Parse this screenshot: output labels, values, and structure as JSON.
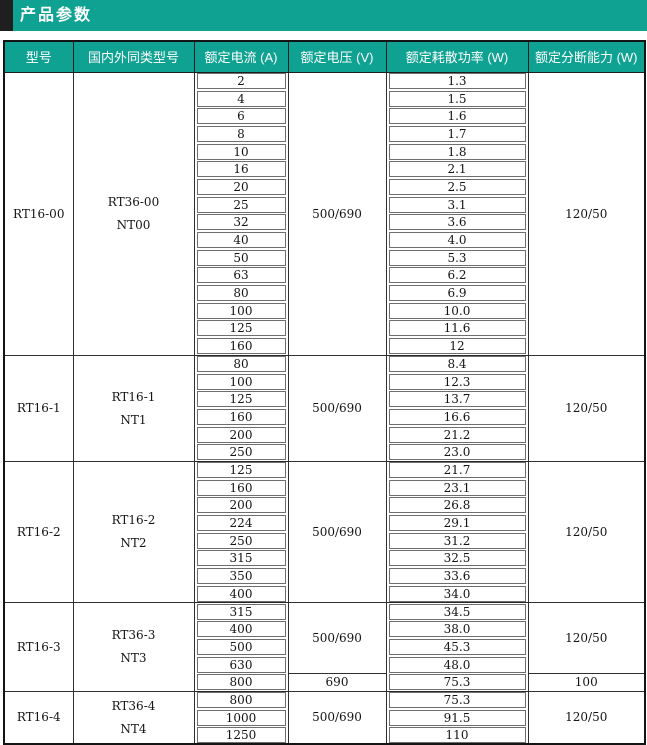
{
  "title_bar": {
    "title": "产品参数"
  },
  "colors": {
    "accent_teal": "#0fa292",
    "accent_dark_block": "#1f1f1f",
    "header_text": "#ffffff",
    "body_text": "#141414",
    "outer_border": "#141414",
    "inner_border": "#303030",
    "value_box_border": "#6e6e6e"
  },
  "table": {
    "headers": [
      "型号",
      "国内外同类型号",
      "额定电流 (A)",
      "额定电压 (V)",
      "额定耗散功率 (W)",
      "额定分断能力 (W)"
    ],
    "sections": [
      {
        "model": "RT16-00",
        "equivalent": [
          "RT36-00",
          "NT00"
        ],
        "rows": [
          {
            "current": "2",
            "power": "1.3"
          },
          {
            "current": "4",
            "power": "1.5"
          },
          {
            "current": "6",
            "power": "1.6"
          },
          {
            "current": "8",
            "power": "1.7"
          },
          {
            "current": "10",
            "power": "1.8"
          },
          {
            "current": "16",
            "power": "2.1"
          },
          {
            "current": "20",
            "power": "2.5"
          },
          {
            "current": "25",
            "power": "3.1"
          },
          {
            "current": "32",
            "power": "3.6"
          },
          {
            "current": "40",
            "power": "4.0"
          },
          {
            "current": "50",
            "power": "5.3"
          },
          {
            "current": "63",
            "power": "6.2"
          },
          {
            "current": "80",
            "power": "6.9"
          },
          {
            "current": "100",
            "power": "10.0"
          },
          {
            "current": "125",
            "power": "11.6"
          },
          {
            "current": "160",
            "power": "12"
          }
        ],
        "voltage_groups": [
          {
            "voltage": "500/690",
            "span": 16
          }
        ],
        "breaking_groups": [
          {
            "value": "120/50",
            "span": 16
          }
        ]
      },
      {
        "model": "RT16-1",
        "equivalent": [
          "RT16-1",
          "NT1"
        ],
        "rows": [
          {
            "current": "80",
            "power": "8.4"
          },
          {
            "current": "100",
            "power": "12.3"
          },
          {
            "current": "125",
            "power": "13.7"
          },
          {
            "current": "160",
            "power": "16.6"
          },
          {
            "current": "200",
            "power": "21.2"
          },
          {
            "current": "250",
            "power": "23.0"
          }
        ],
        "voltage_groups": [
          {
            "voltage": "500/690",
            "span": 6
          }
        ],
        "breaking_groups": [
          {
            "value": "120/50",
            "span": 6
          }
        ]
      },
      {
        "model": "RT16-2",
        "equivalent": [
          "RT16-2",
          "NT2"
        ],
        "rows": [
          {
            "current": "125",
            "power": "21.7"
          },
          {
            "current": "160",
            "power": "23.1"
          },
          {
            "current": "200",
            "power": "26.8"
          },
          {
            "current": "224",
            "power": "29.1"
          },
          {
            "current": "250",
            "power": "31.2"
          },
          {
            "current": "315",
            "power": "32.5"
          },
          {
            "current": "350",
            "power": "33.6"
          },
          {
            "current": "400",
            "power": "34.0"
          }
        ],
        "voltage_groups": [
          {
            "voltage": "500/690",
            "span": 8
          }
        ],
        "breaking_groups": [
          {
            "value": "120/50",
            "span": 8
          }
        ]
      },
      {
        "model": "RT16-3",
        "equivalent": [
          "RT36-3",
          "NT3"
        ],
        "rows": [
          {
            "current": "315",
            "power": "34.5"
          },
          {
            "current": "400",
            "power": "38.0"
          },
          {
            "current": "500",
            "power": "45.3"
          },
          {
            "current": "630",
            "power": "48.0"
          },
          {
            "current": "800",
            "power": "75.3"
          }
        ],
        "voltage_groups": [
          {
            "voltage": "500/690",
            "span": 4
          },
          {
            "voltage": "690",
            "span": 1
          }
        ],
        "breaking_groups": [
          {
            "value": "120/50",
            "span": 4
          },
          {
            "value": "100",
            "span": 1
          }
        ]
      },
      {
        "model": "RT16-4",
        "equivalent": [
          "RT36-4",
          "NT4"
        ],
        "rows": [
          {
            "current": "800",
            "power": "75.3"
          },
          {
            "current": "1000",
            "power": "91.5"
          },
          {
            "current": "1250",
            "power": "110"
          }
        ],
        "voltage_groups": [
          {
            "voltage": "500/690",
            "span": 3
          }
        ],
        "breaking_groups": [
          {
            "value": "120/50",
            "span": 3
          }
        ]
      }
    ]
  }
}
